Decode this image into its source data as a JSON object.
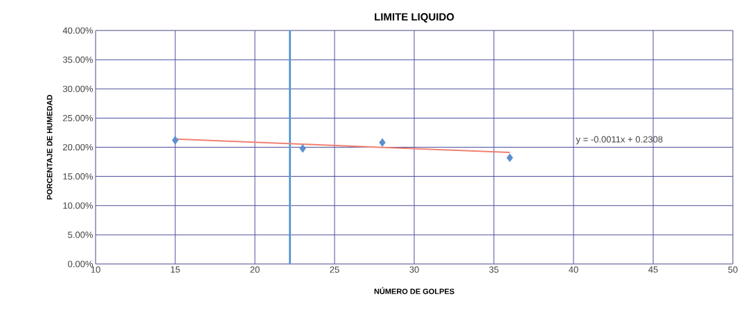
{
  "chart_data": {
    "type": "scatter",
    "title": "LIMITE LIQUIDO",
    "xlabel": "NÚMERO DE GOLPES",
    "ylabel": "PORCENTAJE DE HUMEDAD",
    "xlim": [
      10,
      50
    ],
    "xticks": [
      10,
      15,
      20,
      25,
      30,
      35,
      40,
      45,
      50
    ],
    "ylim": [
      0,
      40
    ],
    "yticks": [
      {
        "value": 0,
        "label": "0.00%"
      },
      {
        "value": 5,
        "label": "5.00%"
      },
      {
        "value": 10,
        "label": "10.00%"
      },
      {
        "value": 15,
        "label": "15.00%"
      },
      {
        "value": 20,
        "label": "20.00%"
      },
      {
        "value": 25,
        "label": "25.00%"
      },
      {
        "value": 30,
        "label": "30.00%"
      },
      {
        "value": 35,
        "label": "35.00%"
      },
      {
        "value": 40,
        "label": "40.00%"
      }
    ],
    "grid": true,
    "series": [
      {
        "color": "#5b8fd0",
        "marker": "diamond",
        "x": [
          15,
          23,
          28,
          36
        ],
        "values": [
          21.2,
          19.8,
          20.8,
          18.2
        ]
      },
      {
        "type": "line",
        "color": "#f08070",
        "marker": "none",
        "x": [
          15,
          36
        ],
        "values": [
          21.4,
          19.1
        ]
      }
    ],
    "ref_lines": [
      {
        "axis": "x",
        "value": 22.2,
        "color": "#5b9bd5"
      }
    ],
    "annotations": [
      "y = -0.0011x + 0.2308"
    ]
  }
}
